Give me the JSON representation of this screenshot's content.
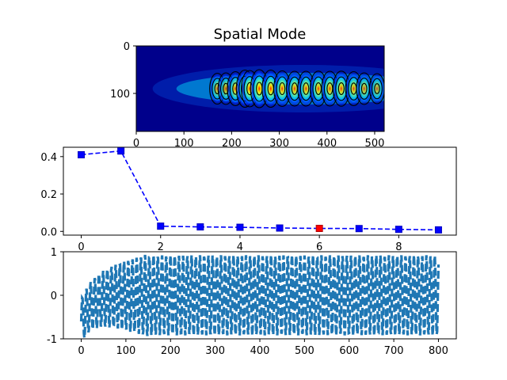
{
  "figure": {
    "title": "Spatial Mode"
  },
  "colors": {
    "marker": "#0000ff",
    "highlight_marker": "#ff0000",
    "line1": "#0000ff",
    "signal": "#1f77b4",
    "heat_background": "#00008b"
  },
  "chart_data": [
    {
      "type": "heatmap",
      "title": "Spatial Mode",
      "colormap": "jet",
      "contours": true,
      "xlim": [
        0,
        520
      ],
      "ylim": [
        180,
        0
      ],
      "xticks": [
        0,
        100,
        200,
        300,
        400,
        500
      ],
      "yticks": [
        0,
        100
      ],
      "xlabel": "",
      "ylabel": "",
      "mode_center_y": 90,
      "lobes": [
        {
          "x": 170,
          "a": 0.55
        },
        {
          "x": 188,
          "a": 0.6
        },
        {
          "x": 208,
          "a": 0.75
        },
        {
          "x": 228,
          "a": 0.95
        },
        {
          "x": 238,
          "a": 0.9
        },
        {
          "x": 258,
          "a": 1.0
        },
        {
          "x": 282,
          "a": 0.95
        },
        {
          "x": 306,
          "a": 0.85
        },
        {
          "x": 332,
          "a": 0.8
        },
        {
          "x": 356,
          "a": 0.8
        },
        {
          "x": 382,
          "a": 0.82
        },
        {
          "x": 406,
          "a": 0.8
        },
        {
          "x": 430,
          "a": 0.82
        },
        {
          "x": 456,
          "a": 0.75
        },
        {
          "x": 478,
          "a": 0.6
        },
        {
          "x": 505,
          "a": 0.5
        }
      ]
    },
    {
      "type": "line",
      "linestyle": "dashed",
      "marker": "square",
      "x": [
        0,
        1,
        2,
        3,
        4,
        5,
        6,
        7,
        8,
        9
      ],
      "values": [
        0.41,
        0.43,
        0.028,
        0.024,
        0.022,
        0.018,
        0.016,
        0.015,
        0.011,
        0.008
      ],
      "highlight_index": 6,
      "xlim": [
        -0.45,
        9.45
      ],
      "ylim": [
        -0.02,
        0.45
      ],
      "xticks": [
        0,
        2,
        4,
        6,
        8
      ],
      "yticks": [
        "0.0",
        "0.2",
        "0.4"
      ],
      "xlabel": "",
      "ylabel": ""
    },
    {
      "type": "line",
      "linestyle": "dashed",
      "x_range": [
        0,
        800
      ],
      "amplitude_envelope": "rises from ~0.5 near x=0 to ~0.95 by x=150 then steady",
      "xlim": [
        -40,
        840
      ],
      "ylim": [
        -1,
        1
      ],
      "xticks": [
        0,
        100,
        200,
        300,
        400,
        500,
        600,
        700,
        800
      ],
      "yticks": [
        "-1",
        "0",
        "1"
      ],
      "xlabel": "",
      "ylabel": ""
    }
  ]
}
